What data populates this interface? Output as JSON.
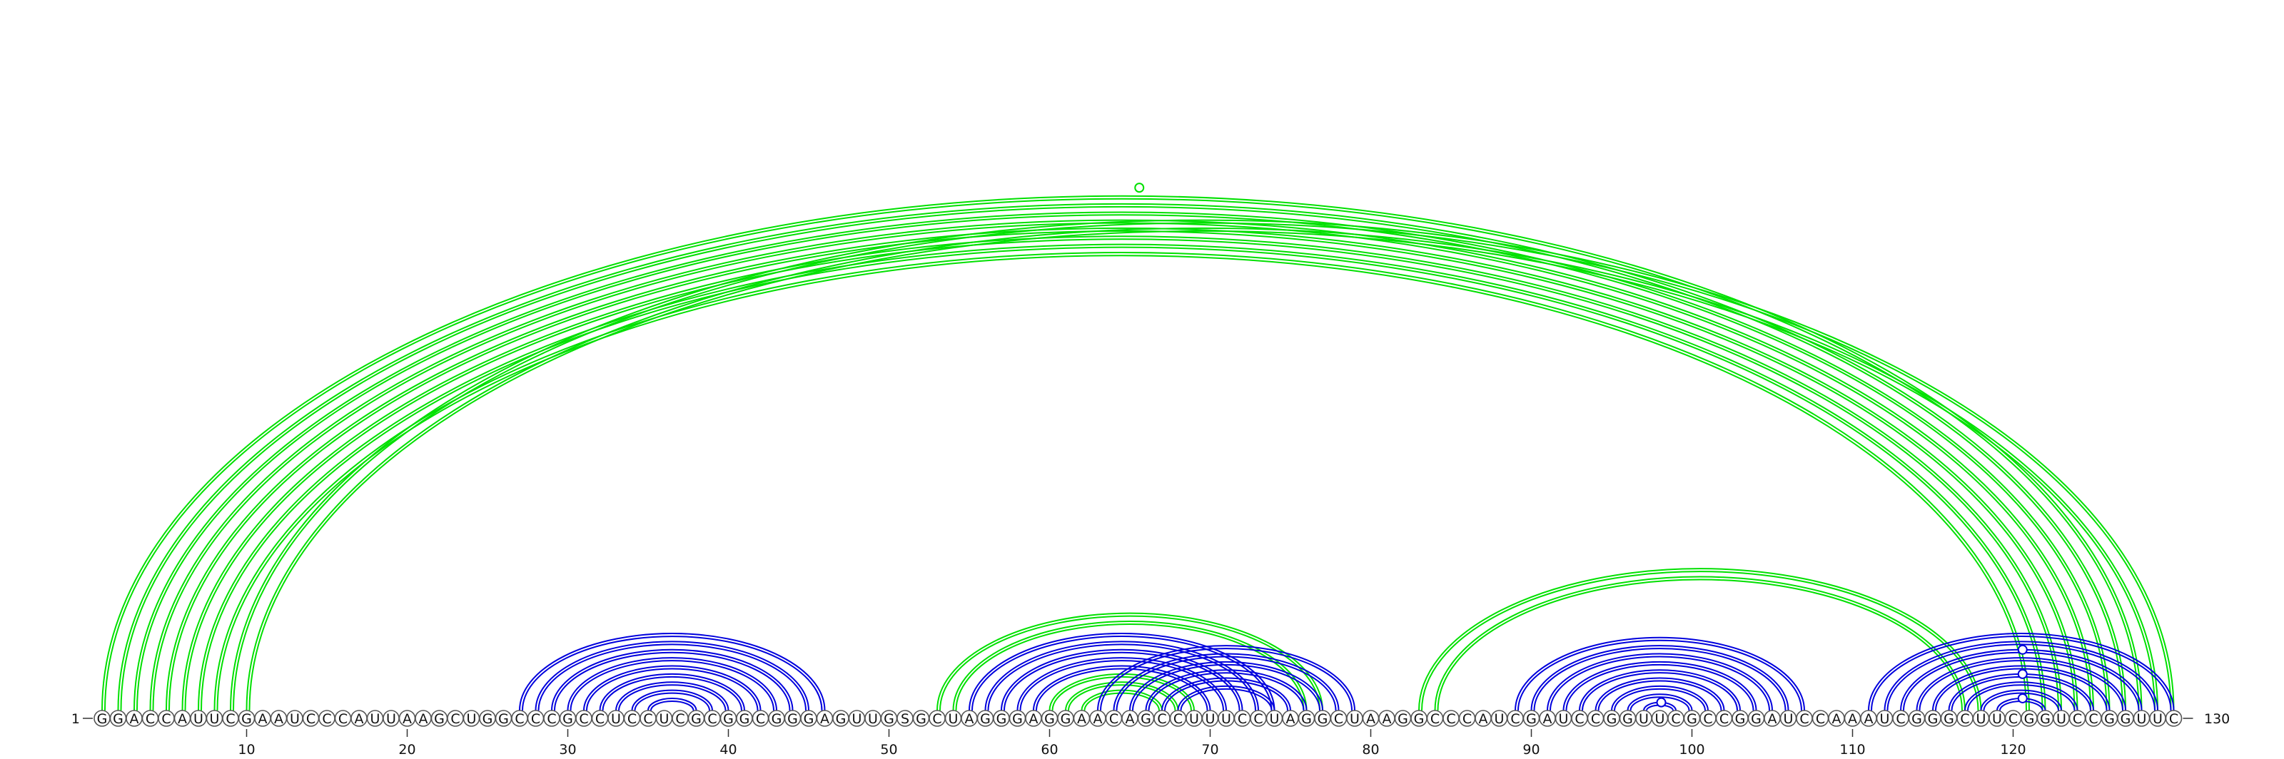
{
  "sequence": {
    "residues": "GGACCAUUCGAAUCCCAUUAAGCUGGCCCGCCUCCUCGCGGCGGGAGUUGSGCUAGGGAGGAACAGCCUUUCCUAGGCUAAGGCCCAUCGAUCCGGUUCGCCGGAUCCAAAUCGGGCUUCGGUCCGGUUC",
    "start_label": "1",
    "end_label": "130",
    "length": 130
  },
  "axis": {
    "tick_labels": [
      "10",
      "20",
      "30",
      "40",
      "50",
      "60",
      "70",
      "80",
      "90",
      "100",
      "110",
      "120"
    ],
    "tick_positions": [
      10,
      20,
      30,
      40,
      50,
      60,
      70,
      80,
      90,
      100,
      110,
      120
    ]
  },
  "colors": {
    "green": "#00e000",
    "blue": "#0000dd"
  },
  "arcs": [
    {
      "color": "green",
      "pairs": [
        [
          1,
          128
        ],
        [
          2,
          127
        ],
        [
          3,
          126
        ],
        [
          4,
          125
        ],
        [
          5,
          124
        ],
        [
          6,
          123
        ],
        [
          7,
          122
        ],
        [
          8,
          121
        ]
      ],
      "double": true
    },
    {
      "color": "green",
      "pairs": [
        [
          9,
          130
        ],
        [
          10,
          129
        ]
      ],
      "double": true
    },
    {
      "color": "blue",
      "pairs": [
        [
          27,
          46
        ],
        [
          28,
          45
        ],
        [
          29,
          44
        ],
        [
          30,
          43
        ],
        [
          31,
          42
        ],
        [
          32,
          41
        ],
        [
          33,
          40
        ],
        [
          34,
          39
        ],
        [
          35,
          38
        ]
      ],
      "double": true
    },
    {
      "color": "green",
      "pairs": [
        [
          53,
          77
        ],
        [
          54,
          76
        ]
      ],
      "double": true
    },
    {
      "color": "blue",
      "pairs": [
        [
          55,
          74
        ],
        [
          56,
          73
        ],
        [
          57,
          72
        ],
        [
          58,
          71
        ],
        [
          59,
          70
        ]
      ],
      "double": true
    },
    {
      "color": "green",
      "pairs": [
        [
          60,
          69
        ],
        [
          61,
          68
        ],
        [
          62,
          67
        ]
      ],
      "double": true
    },
    {
      "color": "blue",
      "pairs": [
        [
          63,
          79
        ],
        [
          64,
          78
        ],
        [
          65,
          77
        ],
        [
          66,
          76
        ],
        [
          67,
          75
        ],
        [
          68,
          74
        ]
      ],
      "double": true
    },
    {
      "color": "green",
      "pairs": [
        [
          83,
          118
        ],
        [
          84,
          117
        ]
      ],
      "double": true
    },
    {
      "color": "blue",
      "pairs": [
        [
          89,
          107
        ],
        [
          90,
          106
        ],
        [
          91,
          105
        ],
        [
          92,
          104
        ],
        [
          93,
          103
        ],
        [
          94,
          102
        ],
        [
          95,
          101
        ],
        [
          96,
          100
        ],
        [
          97,
          99
        ]
      ],
      "double": true
    },
    {
      "color": "blue",
      "pairs": [
        [
          111,
          130
        ],
        [
          112,
          129
        ],
        [
          113,
          128
        ],
        [
          114,
          127
        ],
        [
          115,
          126
        ],
        [
          116,
          125
        ],
        [
          117,
          124
        ],
        [
          118,
          123
        ],
        [
          119,
          122
        ]
      ],
      "double": true
    }
  ],
  "markers": [
    {
      "color": "green",
      "at": 65.5,
      "apex_of": [
        1,
        130
      ]
    },
    {
      "color": "blue",
      "at": 98,
      "apex_of": [
        97,
        99
      ]
    },
    {
      "color": "blue",
      "at": 120.5,
      "apex_of": [
        119,
        122
      ]
    },
    {
      "color": "blue",
      "at": 120.5,
      "apex_of": [
        116,
        125
      ]
    },
    {
      "color": "blue",
      "at": 120.5,
      "apex_of": [
        113,
        128
      ]
    }
  ]
}
